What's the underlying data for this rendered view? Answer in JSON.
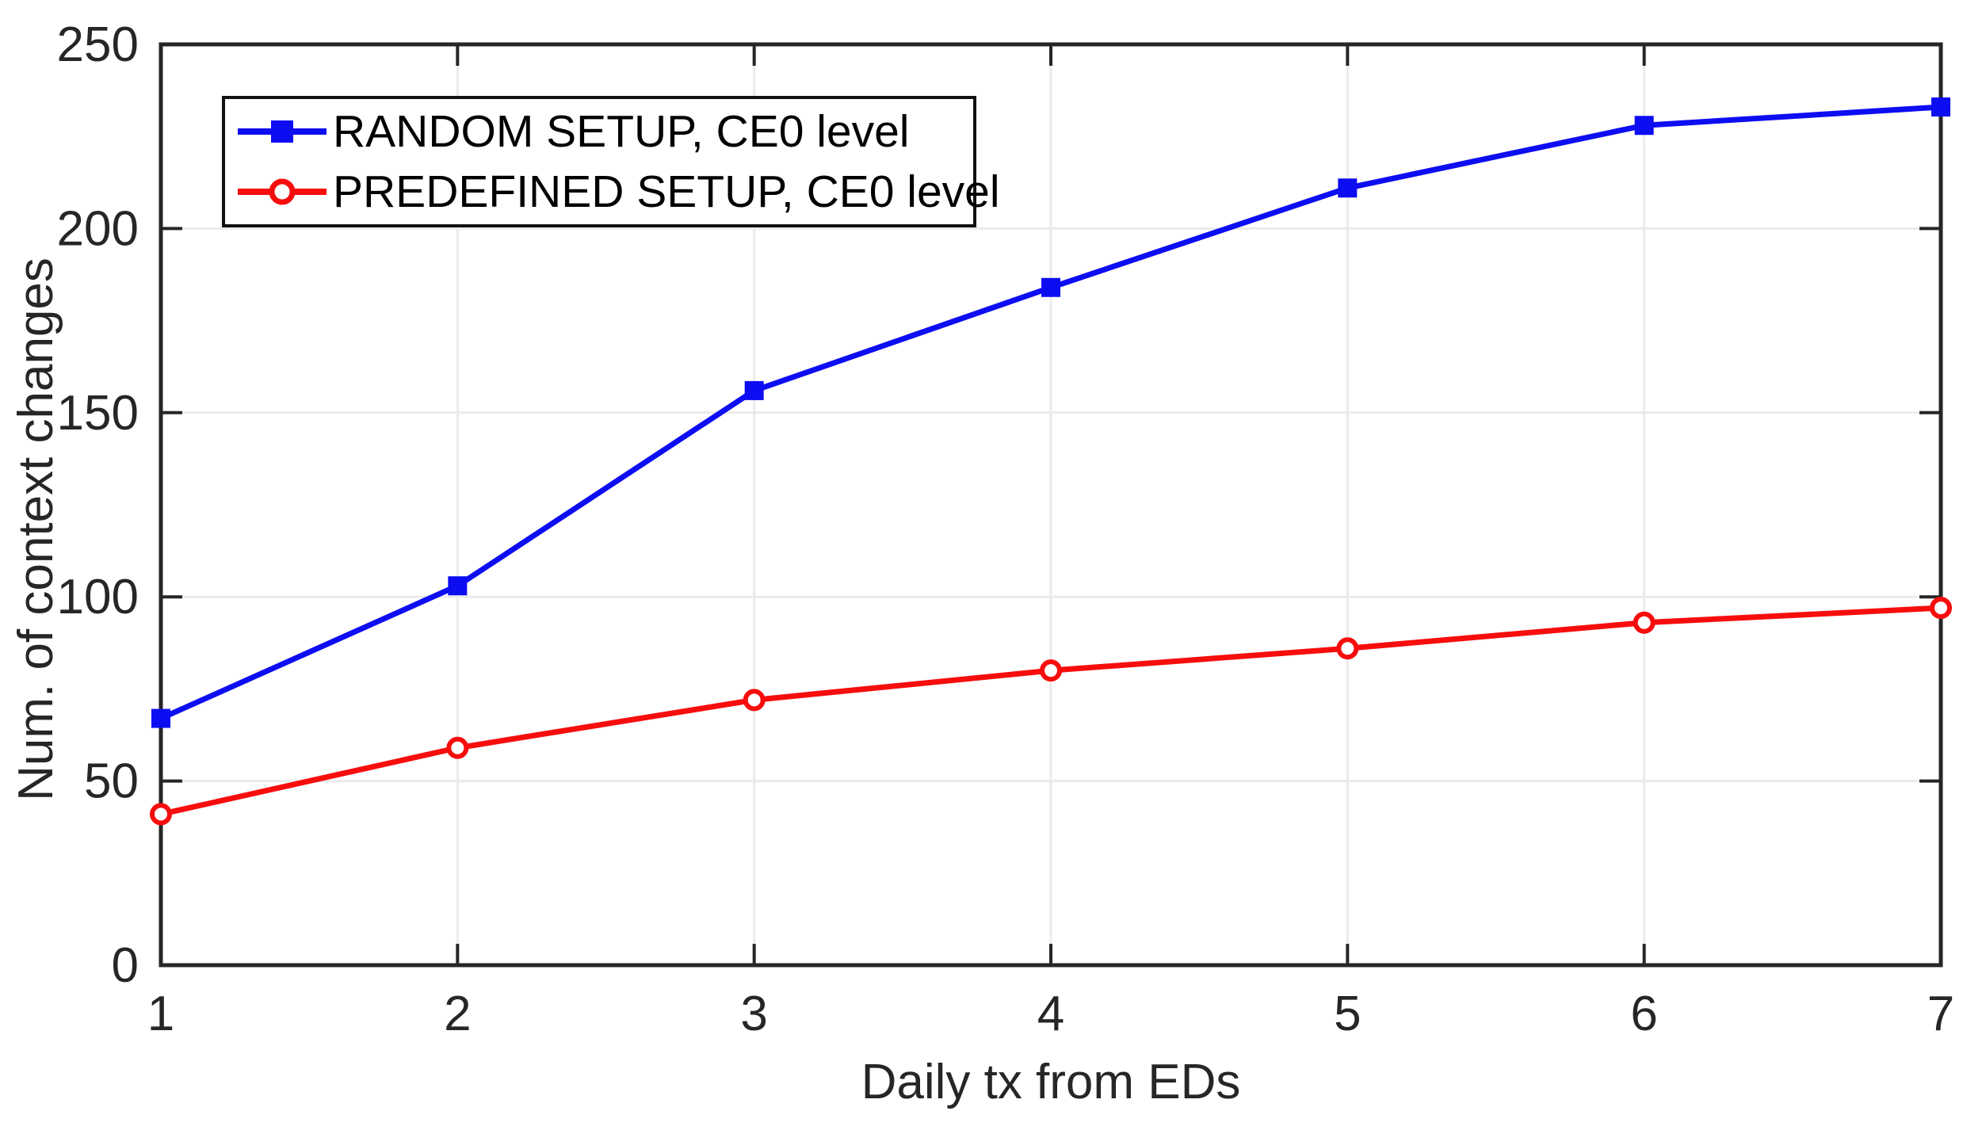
{
  "chart_data": {
    "type": "line",
    "title": "",
    "xlabel": "Daily tx from EDs",
    "ylabel": "Num. of context changes",
    "x": [
      1,
      2,
      3,
      4,
      5,
      6,
      7
    ],
    "series": [
      {
        "name": "RANDOM SETUP, CE0 level",
        "color": "#0d0df2",
        "marker": "square",
        "values": [
          67,
          103,
          156,
          184,
          211,
          228,
          233
        ]
      },
      {
        "name": "PREDEFINED SETUP, CE0 level",
        "color": "#f70d0d",
        "marker": "circle-open",
        "values": [
          41,
          59,
          72,
          80,
          86,
          93,
          97
        ]
      }
    ],
    "xlim": [
      1,
      7
    ],
    "ylim": [
      0,
      250
    ],
    "xticks": [
      1,
      2,
      3,
      4,
      5,
      6,
      7
    ],
    "yticks": [
      0,
      50,
      100,
      150,
      200,
      250
    ],
    "grid": true,
    "legend_position": "top-left"
  },
  "colors": {
    "axis": "#262626",
    "grid": "#ebebeb",
    "tick_label": "#262626",
    "background": "#ffffff",
    "legend_border": "#111111"
  }
}
